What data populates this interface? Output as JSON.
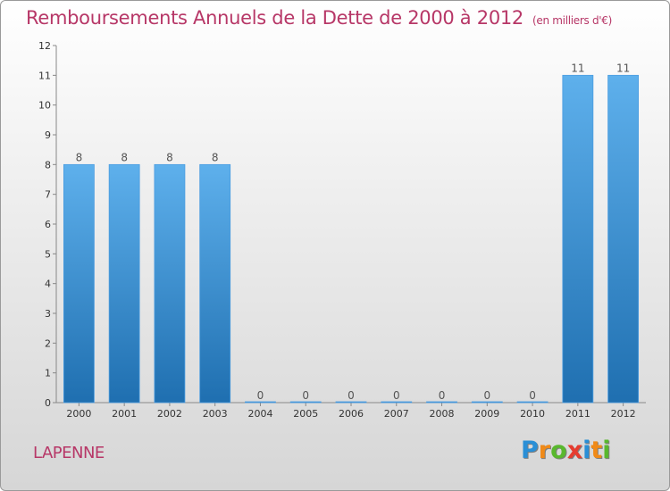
{
  "header": {
    "title": "Remboursements Annuels de la Dette de 2000 à 2012",
    "subtitle": "(en milliers d'€)"
  },
  "place": "LAPENNE",
  "logo": {
    "letters": [
      "P",
      "r",
      "o",
      "x",
      "i",
      "t",
      "i"
    ],
    "colors": [
      "#2a8fd6",
      "#f08a18",
      "#59b82e",
      "#e63c2f",
      "#2a8fd6",
      "#f08a18",
      "#59b82e"
    ]
  },
  "colors": {
    "bar_light": "#5eb0ec",
    "bar_dark": "#1f6fb0",
    "text_accent": "#b73767"
  },
  "chart_data": {
    "type": "bar",
    "categories": [
      "2000",
      "2001",
      "2002",
      "2003",
      "2004",
      "2005",
      "2006",
      "2007",
      "2008",
      "2009",
      "2010",
      "2011",
      "2012"
    ],
    "values": [
      8,
      8,
      8,
      8,
      0,
      0,
      0,
      0,
      0,
      0,
      0,
      11,
      11
    ],
    "data_labels": [
      "8",
      "8",
      "8",
      "8",
      "0",
      "0",
      "0",
      "0",
      "0",
      "0",
      "0",
      "11",
      "11"
    ],
    "yticks": [
      0,
      1,
      2,
      3,
      4,
      5,
      6,
      7,
      8,
      9,
      10,
      11,
      12
    ],
    "ylim": [
      0,
      12
    ],
    "grid": false
  }
}
